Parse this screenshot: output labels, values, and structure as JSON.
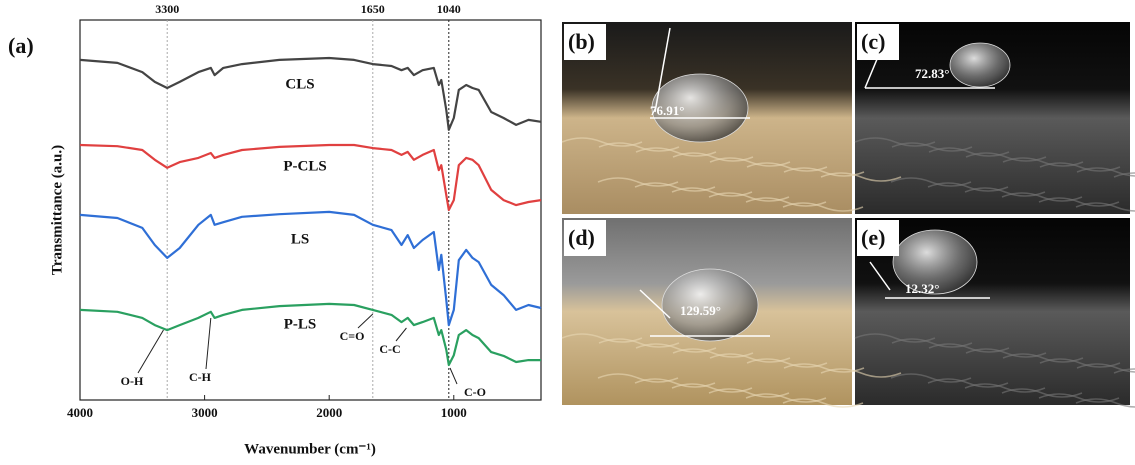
{
  "chart_data": {
    "type": "line",
    "panel_label": "(a)",
    "x_label": "Wavenumber (cm⁻¹)",
    "y_label": "Transmittance (a.u.)",
    "xlim": [
      4000,
      300
    ],
    "xticks": [
      4000,
      3000,
      2000,
      1000
    ],
    "ylim": [
      0,
      100
    ],
    "vlines": [
      3300,
      1650,
      1040
    ],
    "vline_colors": [
      "#aaaaaa",
      "#aaaaaa",
      "#222222"
    ],
    "annotations": [
      "O-H",
      "C-H",
      "C=O",
      "C-C",
      "C-O"
    ],
    "x": [
      4000,
      3700,
      3500,
      3400,
      3300,
      3200,
      3050,
      2950,
      2920,
      2850,
      2700,
      2400,
      2000,
      1800,
      1650,
      1500,
      1420,
      1370,
      1320,
      1250,
      1160,
      1120,
      1100,
      1060,
      1040,
      1000,
      960,
      900,
      850,
      800,
      700,
      600,
      500,
      400,
      300
    ],
    "series": [
      {
        "name": "CLS",
        "color": "#444444",
        "values": [
          89.5,
          88.7,
          86.3,
          83.7,
          82.1,
          83.7,
          86.3,
          87.4,
          85.5,
          87.4,
          88.4,
          89.5,
          90,
          89.5,
          88.4,
          87.9,
          86.8,
          87.4,
          85.5,
          86.8,
          87.4,
          82.9,
          84.2,
          76.3,
          71.1,
          74.2,
          81.6,
          82.9,
          82.1,
          81.6,
          75.8,
          74.2,
          72.4,
          73.7,
          73.2
        ]
      },
      {
        "name": "P-CLS",
        "color": "#e04040",
        "values": [
          67.1,
          66.8,
          65.8,
          63.2,
          61.1,
          62.6,
          63.7,
          65,
          63.7,
          64.5,
          65.8,
          66.6,
          67.1,
          67.1,
          66.3,
          65.8,
          64.5,
          65.3,
          63.2,
          64.5,
          65.8,
          60.5,
          61.8,
          53.9,
          50,
          52.6,
          61.8,
          63.7,
          63.2,
          61.8,
          55.3,
          52.6,
          51.3,
          52.1,
          52.6
        ]
      },
      {
        "name": "LS",
        "color": "#2f6fd6",
        "values": [
          48.7,
          47.9,
          45.3,
          40.8,
          37.4,
          40,
          46.1,
          48.7,
          46.1,
          46.8,
          48.2,
          48.9,
          49.5,
          48.7,
          46.1,
          44.7,
          40.8,
          43.4,
          40,
          42.1,
          44.2,
          34.2,
          38.2,
          26.3,
          19.7,
          23.7,
          36.8,
          39.5,
          37.4,
          36.3,
          30.3,
          27.6,
          23.7,
          25,
          24.2
        ]
      },
      {
        "name": "P-LS",
        "color": "#2aa060",
        "values": [
          23.7,
          23.2,
          21.6,
          19.7,
          18.4,
          19.7,
          21.6,
          23.2,
          21.6,
          22.4,
          23.7,
          24.7,
          25.3,
          25,
          23.7,
          22.4,
          20.5,
          21.6,
          19.7,
          20.5,
          21.6,
          17.1,
          18.4,
          13.2,
          9.2,
          11.8,
          17.1,
          18.4,
          17.1,
          16.3,
          12.6,
          11.6,
          10,
          10.5,
          10.5
        ]
      }
    ]
  },
  "panels": [
    {
      "label": "(b)",
      "angle": "76.91°"
    },
    {
      "label": "(c)",
      "angle": "72.83°"
    },
    {
      "label": "(d)",
      "angle": "129.59°"
    },
    {
      "label": "(e)",
      "angle": "12.32°"
    }
  ]
}
